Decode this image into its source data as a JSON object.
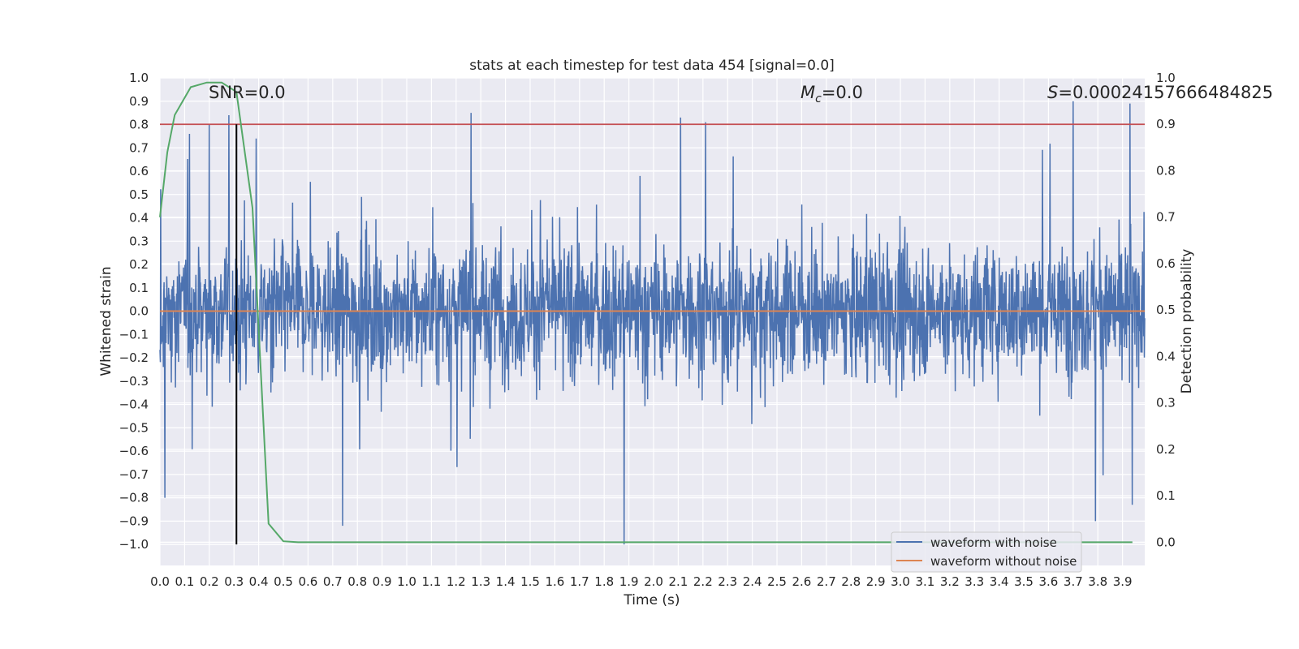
{
  "chart_data": {
    "type": "line",
    "title": "stats at each timestep for test data 454 [signal=0.0]",
    "xlabel": "Time (s)",
    "ylabel": "Whitened strain",
    "y2label": "Detection probability",
    "xlim": [
      0.0,
      3.99
    ],
    "ylim": [
      -1.09,
      1.0
    ],
    "y2lim": [
      -0.05,
      1.0
    ],
    "x_ticks": [
      "0.0",
      "0.1",
      "0.2",
      "0.3",
      "0.4",
      "0.5",
      "0.6",
      "0.7",
      "0.8",
      "0.9",
      "1.0",
      "1.1",
      "1.2",
      "1.3",
      "1.4",
      "1.5",
      "1.6",
      "1.7",
      "1.8",
      "1.9",
      "2.0",
      "2.1",
      "2.2",
      "2.3",
      "2.4",
      "2.5",
      "2.6",
      "2.7",
      "2.8",
      "2.9",
      "3.0",
      "3.1",
      "3.2",
      "3.3",
      "3.4",
      "3.5",
      "3.6",
      "3.7",
      "3.8",
      "3.9"
    ],
    "y_ticks": [
      "1.0",
      "0.9",
      "0.8",
      "0.7",
      "0.6",
      "0.5",
      "0.4",
      "0.3",
      "0.2",
      "0.1",
      "0.0",
      "−0.1",
      "−0.2",
      "−0.3",
      "−0.4",
      "−0.5",
      "−0.6",
      "−0.7",
      "−0.8",
      "−0.9",
      "−1.0"
    ],
    "y2_ticks": [
      "1.0",
      "0.9",
      "0.8",
      "0.7",
      "0.6",
      "0.5",
      "0.4",
      "0.3",
      "0.2",
      "0.1",
      "0.0"
    ],
    "grid": true,
    "legend_position": "lower-right",
    "legend": [
      "waveform with noise",
      "waveform without noise"
    ],
    "annotations": {
      "snr": "SNR=0.0",
      "mc_symbol": "M",
      "mc_sub": "c",
      "mc_value": "=0.0",
      "s_symbol": "S",
      "s_value": "=0.00024157666484825"
    },
    "series": [
      {
        "name": "waveform with noise",
        "axis": "left",
        "color": "#4c72b0",
        "envelope_note": "dense noise, roughly within [-0.6, 0.6] with spikes",
        "spikes": [
          {
            "x": 0.02,
            "y": -0.8
          },
          {
            "x": 0.12,
            "y": 0.76
          },
          {
            "x": 0.2,
            "y": 0.8
          },
          {
            "x": 0.28,
            "y": 0.84
          },
          {
            "x": 0.39,
            "y": 0.74
          },
          {
            "x": 0.74,
            "y": -0.92
          },
          {
            "x": 1.26,
            "y": 0.85
          },
          {
            "x": 1.88,
            "y": -1.0
          },
          {
            "x": 2.11,
            "y": 0.83
          },
          {
            "x": 2.21,
            "y": 0.81
          },
          {
            "x": 3.7,
            "y": 0.9
          },
          {
            "x": 3.79,
            "y": -0.9
          },
          {
            "x": 3.93,
            "y": 0.89
          },
          {
            "x": 3.94,
            "y": -0.83
          }
        ]
      },
      {
        "name": "waveform without noise",
        "axis": "left",
        "color": "#dd8452",
        "x": [
          0.0,
          3.99
        ],
        "y": [
          0.0,
          0.0
        ]
      },
      {
        "axis": "right",
        "color": "#55a868",
        "x": [
          0.0,
          0.03,
          0.06,
          0.125,
          0.19,
          0.25,
          0.31,
          0.375,
          0.44,
          0.5,
          0.56,
          0.625,
          0.69,
          3.94
        ],
        "y": [
          0.7,
          0.84,
          0.92,
          0.98,
          0.99,
          0.99,
          0.97,
          0.72,
          0.04,
          0.002,
          0.0,
          0.0,
          0.0,
          0.0
        ]
      }
    ],
    "threshold_right": {
      "value": 0.9,
      "color": "#c44e52"
    },
    "marker_x": {
      "value": 0.31,
      "y_from": -1.0,
      "y_to": 0.9,
      "color": "#000000"
    },
    "colors": {
      "plot_bg": "#eaeaf2",
      "grid": "#ffffff",
      "text": "#262626"
    }
  }
}
